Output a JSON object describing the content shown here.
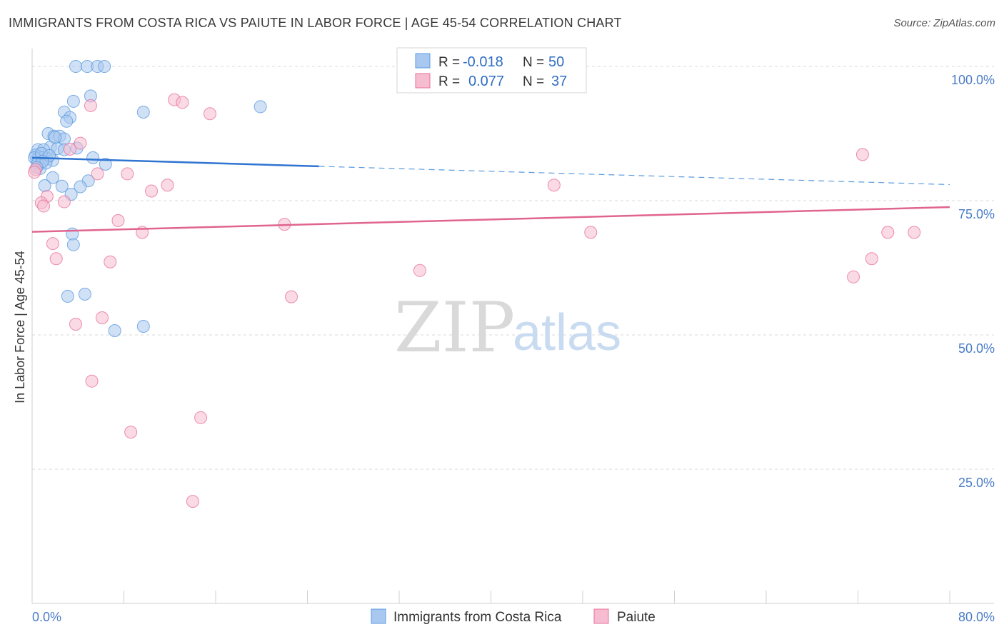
{
  "header": {
    "title": "IMMIGRANTS FROM COSTA RICA VS PAIUTE IN LABOR FORCE | AGE 45-54 CORRELATION CHART",
    "source": "Source: ZipAtlas.com"
  },
  "watermark": {
    "zip": "ZIP",
    "atlas": "atlas"
  },
  "colors": {
    "blue": "#5b9be0",
    "blue_fill": "#a9c8ef",
    "pink": "#e8729b",
    "pink_fill": "#f6bcd0",
    "axis_text": "#4a7cc7",
    "grid": "#d8d8d8"
  },
  "legend": {
    "rows": [
      {
        "r_label": "R =",
        "r_value": "-0.018",
        "n_label": "N =",
        "n_value": "50"
      },
      {
        "r_label": "R =",
        "r_value": "0.077",
        "n_label": "N =",
        "n_value": "37"
      }
    ]
  },
  "chart_data": {
    "type": "scatter",
    "title": "IMMIGRANTS FROM COSTA RICA VS PAIUTE IN LABOR FORCE | AGE 45-54 CORRELATION CHART",
    "xlabel": "",
    "ylabel": "In Labor Force | Age 45-54",
    "xlim": [
      0,
      80
    ],
    "ylim": [
      0,
      102
    ],
    "x_tick_labels": [
      "0.0%",
      "80.0%"
    ],
    "y_ticks": [
      25,
      50,
      75,
      100
    ],
    "y_tick_labels": [
      "25.0%",
      "50.0%",
      "75.0%",
      "100.0%"
    ],
    "grid": true,
    "legend_position": "top-center",
    "series": [
      {
        "name": "Immigrants from Costa Rica",
        "color": "blue",
        "r": -0.018,
        "n": 50,
        "trend": {
          "x": [
            0,
            25,
            80
          ],
          "y": [
            83.0,
            81.4,
            78.0
          ],
          "solid_until": 25
        },
        "points": [
          [
            3.8,
            100
          ],
          [
            4.8,
            100
          ],
          [
            5.7,
            100
          ],
          [
            6.3,
            100
          ],
          [
            5.1,
            94.5
          ],
          [
            3.6,
            93.5
          ],
          [
            9.7,
            91.5
          ],
          [
            19.9,
            92.5
          ],
          [
            2.8,
            91.5
          ],
          [
            3.3,
            90.5
          ],
          [
            3.0,
            89.8
          ],
          [
            1.4,
            87.5
          ],
          [
            1.9,
            87.0
          ],
          [
            2.4,
            87.0
          ],
          [
            2.8,
            86.5
          ],
          [
            1.6,
            85.0
          ],
          [
            0.5,
            84.5
          ],
          [
            1.0,
            84.5
          ],
          [
            2.2,
            84.7
          ],
          [
            2.8,
            84.5
          ],
          [
            0.3,
            83.5
          ],
          [
            0.6,
            83.2
          ],
          [
            0.9,
            83.0
          ],
          [
            1.3,
            82.8
          ],
          [
            1.8,
            82.5
          ],
          [
            0.4,
            82.7
          ],
          [
            0.2,
            83.0
          ],
          [
            5.3,
            83.0
          ],
          [
            6.4,
            81.8
          ],
          [
            0.7,
            81.0
          ],
          [
            0.5,
            82.0
          ],
          [
            1.2,
            82.0
          ],
          [
            1.8,
            79.3
          ],
          [
            4.9,
            78.7
          ],
          [
            1.1,
            77.8
          ],
          [
            2.6,
            77.7
          ],
          [
            4.2,
            77.6
          ],
          [
            3.4,
            76.2
          ],
          [
            3.5,
            68.8
          ],
          [
            3.6,
            66.8
          ],
          [
            3.1,
            57.2
          ],
          [
            4.6,
            57.6
          ],
          [
            7.2,
            50.8
          ],
          [
            9.7,
            51.6
          ],
          [
            0.8,
            83.8
          ],
          [
            1.5,
            83.4
          ],
          [
            2.0,
            86.8
          ],
          [
            0.9,
            82.3
          ],
          [
            3.9,
            84.8
          ],
          [
            0.4,
            81.2
          ]
        ]
      },
      {
        "name": "Paiute",
        "color": "pink",
        "r": 0.077,
        "n": 37,
        "trend": {
          "x": [
            0,
            80
          ],
          "y": [
            69.2,
            73.8
          ]
        },
        "points": [
          [
            12.4,
            93.8
          ],
          [
            13.1,
            93.3
          ],
          [
            5.1,
            92.7
          ],
          [
            15.5,
            91.2
          ],
          [
            4.2,
            85.7
          ],
          [
            3.3,
            84.6
          ],
          [
            5.7,
            80.0
          ],
          [
            8.3,
            80.0
          ],
          [
            11.8,
            77.9
          ],
          [
            10.4,
            76.8
          ],
          [
            1.3,
            75.8
          ],
          [
            0.8,
            74.6
          ],
          [
            2.8,
            74.8
          ],
          [
            7.5,
            71.3
          ],
          [
            22.0,
            70.6
          ],
          [
            9.6,
            69.1
          ],
          [
            1.8,
            67.0
          ],
          [
            2.1,
            64.2
          ],
          [
            6.8,
            63.6
          ],
          [
            33.8,
            62.0
          ],
          [
            22.6,
            57.1
          ],
          [
            6.1,
            53.2
          ],
          [
            3.8,
            52.0
          ],
          [
            5.2,
            41.4
          ],
          [
            14.7,
            34.6
          ],
          [
            8.6,
            31.9
          ],
          [
            14.0,
            19.0
          ],
          [
            45.5,
            77.9
          ],
          [
            48.7,
            69.1
          ],
          [
            72.4,
            83.6
          ],
          [
            73.2,
            64.2
          ],
          [
            74.6,
            69.1
          ],
          [
            76.9,
            69.1
          ],
          [
            71.6,
            60.8
          ],
          [
            0.3,
            80.8
          ],
          [
            0.2,
            80.3
          ],
          [
            1.0,
            74.0
          ]
        ]
      }
    ]
  }
}
